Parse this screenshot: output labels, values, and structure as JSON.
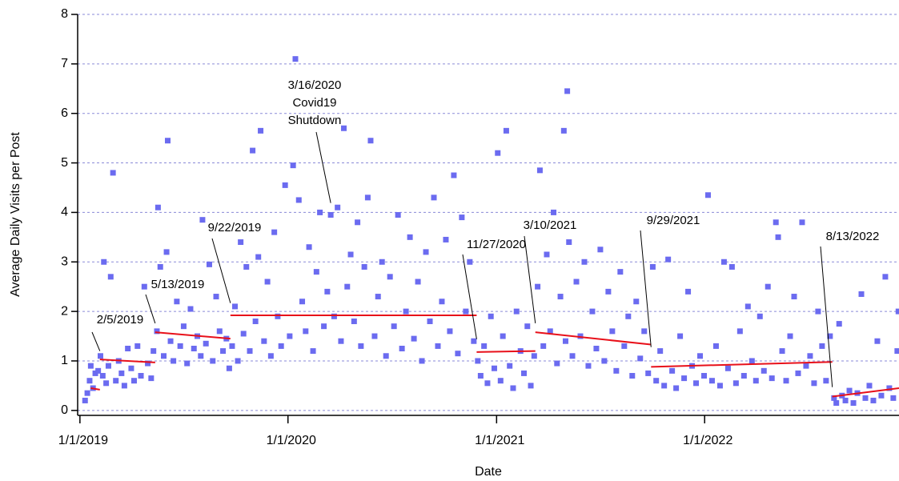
{
  "chart_data": {
    "type": "scatter",
    "x_label": "Date",
    "y_label": "Average Daily Visits per Post",
    "color": "#6b6bf0",
    "xlim": [
      "2018-12-28",
      "2022-12-08"
    ],
    "xticks": [
      {
        "value": "2019-01-01",
        "label": "1/1/2019"
      },
      {
        "value": "2020-01-01",
        "label": "1/1/2020"
      },
      {
        "value": "2021-01-01",
        "label": "1/1/2021"
      },
      {
        "value": "2022-01-01",
        "label": "1/1/2022"
      }
    ],
    "ylim": [
      -0.1,
      8
    ],
    "yticks": [
      0,
      1,
      2,
      3,
      4,
      5,
      6,
      7,
      8
    ],
    "grid": true,
    "x": [
      "2019-01-10",
      "2019-01-14",
      "2019-01-18",
      "2019-01-20",
      "2019-01-24",
      "2019-01-28",
      "2019-02-02",
      "2019-02-06",
      "2019-02-10",
      "2019-02-12",
      "2019-02-16",
      "2019-02-20",
      "2019-02-24",
      "2019-02-28",
      "2019-03-05",
      "2019-03-10",
      "2019-03-15",
      "2019-03-20",
      "2019-03-26",
      "2019-04-01",
      "2019-04-06",
      "2019-04-12",
      "2019-04-18",
      "2019-04-24",
      "2019-04-30",
      "2019-05-06",
      "2019-05-10",
      "2019-05-16",
      "2019-05-18",
      "2019-05-22",
      "2019-05-28",
      "2019-06-02",
      "2019-06-04",
      "2019-06-09",
      "2019-06-14",
      "2019-06-20",
      "2019-06-26",
      "2019-07-02",
      "2019-07-08",
      "2019-07-14",
      "2019-07-20",
      "2019-07-26",
      "2019-08-01",
      "2019-08-04",
      "2019-08-10",
      "2019-08-16",
      "2019-08-22",
      "2019-08-28",
      "2019-09-03",
      "2019-09-09",
      "2019-09-15",
      "2019-09-20",
      "2019-09-25",
      "2019-09-30",
      "2019-10-05",
      "2019-10-10",
      "2019-10-15",
      "2019-10-20",
      "2019-10-26",
      "2019-10-31",
      "2019-11-05",
      "2019-11-10",
      "2019-11-14",
      "2019-11-20",
      "2019-11-26",
      "2019-12-02",
      "2019-12-08",
      "2019-12-14",
      "2019-12-20",
      "2019-12-27",
      "2020-01-04",
      "2020-01-10",
      "2020-01-14",
      "2020-01-20",
      "2020-01-26",
      "2020-02-01",
      "2020-02-07",
      "2020-02-14",
      "2020-02-20",
      "2020-02-26",
      "2020-03-04",
      "2020-03-10",
      "2020-03-16",
      "2020-03-22",
      "2020-03-28",
      "2020-04-03",
      "2020-04-08",
      "2020-04-14",
      "2020-04-20",
      "2020-04-26",
      "2020-05-02",
      "2020-05-08",
      "2020-05-14",
      "2020-05-20",
      "2020-05-25",
      "2020-06-01",
      "2020-06-07",
      "2020-06-14",
      "2020-06-21",
      "2020-06-28",
      "2020-07-05",
      "2020-07-12",
      "2020-07-19",
      "2020-07-26",
      "2020-08-02",
      "2020-08-09",
      "2020-08-16",
      "2020-08-23",
      "2020-08-30",
      "2020-09-06",
      "2020-09-13",
      "2020-09-20",
      "2020-09-27",
      "2020-10-04",
      "2020-10-11",
      "2020-10-18",
      "2020-10-25",
      "2020-11-01",
      "2020-11-08",
      "2020-11-15",
      "2020-11-22",
      "2020-11-29",
      "2020-12-04",
      "2020-12-10",
      "2020-12-16",
      "2020-12-22",
      "2020-12-28",
      "2021-01-03",
      "2021-01-08",
      "2021-01-12",
      "2021-01-18",
      "2021-01-24",
      "2021-01-30",
      "2021-02-05",
      "2021-02-12",
      "2021-02-18",
      "2021-02-24",
      "2021-03-02",
      "2021-03-08",
      "2021-03-14",
      "2021-03-18",
      "2021-03-24",
      "2021-03-30",
      "2021-04-05",
      "2021-04-11",
      "2021-04-17",
      "2021-04-23",
      "2021-04-29",
      "2021-05-02",
      "2021-05-05",
      "2021-05-08",
      "2021-05-14",
      "2021-05-21",
      "2021-05-28",
      "2021-06-04",
      "2021-06-11",
      "2021-06-18",
      "2021-06-25",
      "2021-07-02",
      "2021-07-09",
      "2021-07-16",
      "2021-07-23",
      "2021-07-30",
      "2021-08-06",
      "2021-08-13",
      "2021-08-20",
      "2021-08-27",
      "2021-09-03",
      "2021-09-10",
      "2021-09-17",
      "2021-09-24",
      "2021-10-02",
      "2021-10-08",
      "2021-10-15",
      "2021-10-22",
      "2021-10-29",
      "2021-11-05",
      "2021-11-12",
      "2021-11-19",
      "2021-11-26",
      "2021-12-03",
      "2021-12-10",
      "2021-12-17",
      "2021-12-24",
      "2021-12-31",
      "2022-01-07",
      "2022-01-14",
      "2022-01-21",
      "2022-01-28",
      "2022-02-04",
      "2022-02-11",
      "2022-02-18",
      "2022-02-25",
      "2022-03-04",
      "2022-03-11",
      "2022-03-18",
      "2022-03-25",
      "2022-04-01",
      "2022-04-08",
      "2022-04-15",
      "2022-04-22",
      "2022-04-29",
      "2022-05-06",
      "2022-05-10",
      "2022-05-17",
      "2022-05-24",
      "2022-05-31",
      "2022-06-07",
      "2022-06-14",
      "2022-06-21",
      "2022-06-28",
      "2022-07-05",
      "2022-07-12",
      "2022-07-19",
      "2022-07-26",
      "2022-08-02",
      "2022-08-09",
      "2022-08-16",
      "2022-08-20",
      "2022-08-25",
      "2022-08-30",
      "2022-09-05",
      "2022-09-12",
      "2022-09-19",
      "2022-09-26",
      "2022-10-03",
      "2022-10-10",
      "2022-10-17",
      "2022-10-24",
      "2022-10-31",
      "2022-11-07",
      "2022-11-14",
      "2022-11-21",
      "2022-11-28",
      "2022-12-05",
      "2022-12-07"
    ],
    "values": [
      0.2,
      0.35,
      0.6,
      0.9,
      0.45,
      0.75,
      0.8,
      1.1,
      0.7,
      3.0,
      0.55,
      0.9,
      2.7,
      4.8,
      0.6,
      1.0,
      0.75,
      0.5,
      1.25,
      0.85,
      0.6,
      1.3,
      0.7,
      2.5,
      0.95,
      0.65,
      1.2,
      1.6,
      4.1,
      2.9,
      1.1,
      3.2,
      5.45,
      1.4,
      1.0,
      2.2,
      1.3,
      1.7,
      0.95,
      2.05,
      1.25,
      1.5,
      1.1,
      3.85,
      1.35,
      2.95,
      1.0,
      2.3,
      1.6,
      1.2,
      1.45,
      0.85,
      1.3,
      2.1,
      1.0,
      3.4,
      1.55,
      2.9,
      1.2,
      5.25,
      1.8,
      3.1,
      5.65,
      1.4,
      2.6,
      1.1,
      3.6,
      1.9,
      1.3,
      4.55,
      1.5,
      4.95,
      7.1,
      4.25,
      2.2,
      1.6,
      3.3,
      1.2,
      2.8,
      4.0,
      1.7,
      2.4,
      3.95,
      1.9,
      4.1,
      1.4,
      5.7,
      2.5,
      3.15,
      1.8,
      3.8,
      1.3,
      2.9,
      4.3,
      5.45,
      1.5,
      2.3,
      3.0,
      1.1,
      2.7,
      1.7,
      3.95,
      1.25,
      2.0,
      3.5,
      1.45,
      2.6,
      1.0,
      3.2,
      1.8,
      4.3,
      1.3,
      2.2,
      3.45,
      1.6,
      4.75,
      1.15,
      3.9,
      2.0,
      3.0,
      1.4,
      1.0,
      0.7,
      1.3,
      0.55,
      1.9,
      0.85,
      5.2,
      0.6,
      1.5,
      5.65,
      0.9,
      0.45,
      2.0,
      1.2,
      0.75,
      1.7,
      0.5,
      1.1,
      2.5,
      4.85,
      1.3,
      3.15,
      1.6,
      4.0,
      0.95,
      2.3,
      5.65,
      1.4,
      6.45,
      3.4,
      1.1,
      2.6,
      1.5,
      3.0,
      0.9,
      2.0,
      1.25,
      3.25,
      1.0,
      2.4,
      1.6,
      0.8,
      2.8,
      1.3,
      1.9,
      0.7,
      2.2,
      1.05,
      1.6,
      0.75,
      2.9,
      0.6,
      1.2,
      0.5,
      3.05,
      0.8,
      0.45,
      1.5,
      0.65,
      2.4,
      0.9,
      0.55,
      1.1,
      0.7,
      4.35,
      0.6,
      1.3,
      0.5,
      3.0,
      0.85,
      2.9,
      0.55,
      1.6,
      0.7,
      2.1,
      1.0,
      0.6,
      1.9,
      0.8,
      2.5,
      0.65,
      3.8,
      3.5,
      1.2,
      0.6,
      1.5,
      2.3,
      0.75,
      3.8,
      0.9,
      1.1,
      0.55,
      2.0,
      1.3,
      0.6,
      1.5,
      0.25,
      0.15,
      1.75,
      0.3,
      0.2,
      0.4,
      0.15,
      0.35,
      2.35,
      0.25,
      0.5,
      0.2,
      1.4,
      0.3,
      2.7,
      0.45,
      0.25,
      1.2,
      2.0
    ],
    "trend_color": "#e8101a",
    "trend_lines": [
      {
        "x": [
          "2019-01-20",
          "2019-02-05"
        ],
        "values": [
          0.45,
          0.42
        ]
      },
      {
        "x": [
          "2019-02-05",
          "2019-05-13"
        ],
        "values": [
          1.03,
          0.97
        ]
      },
      {
        "x": [
          "2019-05-13",
          "2019-09-22"
        ],
        "values": [
          1.58,
          1.45
        ]
      },
      {
        "x": [
          "2019-09-22",
          "2020-11-27"
        ],
        "values": [
          1.92,
          1.92
        ]
      },
      {
        "x": [
          "2020-11-27",
          "2021-03-10"
        ],
        "values": [
          1.18,
          1.2
        ]
      },
      {
        "x": [
          "2021-03-10",
          "2021-09-29"
        ],
        "values": [
          1.58,
          1.33
        ]
      },
      {
        "x": [
          "2021-09-29",
          "2022-08-13"
        ],
        "values": [
          0.88,
          0.98
        ]
      },
      {
        "x": [
          "2022-08-13",
          "2022-12-08"
        ],
        "values": [
          0.28,
          0.45
        ]
      }
    ],
    "annotations": [
      {
        "text": [
          "2/5/2019"
        ],
        "x": "2019-02-05",
        "y": 1.2
      },
      {
        "text": [
          "5/13/2019"
        ],
        "x": "2019-05-13",
        "y": 1.76
      },
      {
        "text": [
          "9/22/2019"
        ],
        "x": "2019-09-22",
        "y": 2.17
      },
      {
        "text": [
          "3/16/2020",
          "Covid19",
          "Shutdown"
        ],
        "x": "2020-03-16",
        "y": 4.19
      },
      {
        "text": [
          "11/27/2020"
        ],
        "x": "2020-11-27",
        "y": 1.44
      },
      {
        "text": [
          "3/10/2021"
        ],
        "x": "2021-03-10",
        "y": 1.76
      },
      {
        "text": [
          "9/29/2021"
        ],
        "x": "2021-09-29",
        "y": 1.28
      },
      {
        "text": [
          "8/13/2022"
        ],
        "x": "2022-08-13",
        "y": 0.47
      }
    ]
  }
}
